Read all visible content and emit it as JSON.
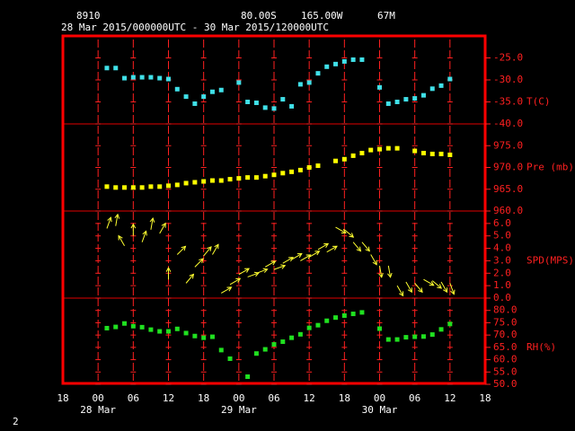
{
  "chart_data": {
    "type": "meteogram",
    "header": {
      "station": "8910",
      "latitude": "80.00S",
      "longitude": "165.00W",
      "elevation": "67M",
      "period": "28 Mar 2015/000000UTC - 30 Mar 2015/120000UTC"
    },
    "page_number": "2",
    "x": [
      1.5,
      3,
      4.5,
      6,
      7.5,
      9,
      10.5,
      12,
      13.5,
      15,
      16.5,
      18,
      19.5,
      21,
      22.5,
      24,
      25.5,
      27,
      28.5,
      30,
      31.5,
      33,
      34.5,
      36,
      37.5,
      39,
      40.5,
      42,
      43.5,
      45,
      46.5,
      48,
      49.5,
      51,
      52.5,
      54,
      55.5,
      57,
      58.5,
      60
    ],
    "xlim": [
      -6,
      66
    ],
    "xticks": [
      {
        "value": -6,
        "label": "18"
      },
      {
        "value": 0,
        "label": "00"
      },
      {
        "value": 6,
        "label": "06"
      },
      {
        "value": 12,
        "label": "12"
      },
      {
        "value": 18,
        "label": "18"
      },
      {
        "value": 24,
        "label": "00"
      },
      {
        "value": 30,
        "label": "06"
      },
      {
        "value": 36,
        "label": "12"
      },
      {
        "value": 42,
        "label": "18"
      },
      {
        "value": 48,
        "label": "00"
      },
      {
        "value": 54,
        "label": "06"
      },
      {
        "value": 60,
        "label": "12"
      },
      {
        "value": 66,
        "label": "18"
      }
    ],
    "date_ticks": [
      {
        "value": 0,
        "label": "28 Mar"
      },
      {
        "value": 24,
        "label": "29 Mar"
      },
      {
        "value": 48,
        "label": "30 Mar"
      }
    ],
    "panels": [
      {
        "type": "scatter",
        "label": "T(C)",
        "color": "#40e0e8",
        "ylim": [
          -40,
          -20
        ],
        "yticks": [
          {
            "value": -25,
            "label": "-25.0"
          },
          {
            "value": -30,
            "label": "-30.0"
          },
          {
            "value": -35,
            "label": "-35.0"
          },
          {
            "value": -40,
            "label": "-40.0"
          }
        ],
        "values": [
          -27.3,
          -27.3,
          -29.6,
          -29.4,
          -29.4,
          -29.4,
          -29.6,
          -29.8,
          -32.1,
          -33.8,
          -35.4,
          -33.8,
          -32.7,
          -32.3,
          null,
          -30.6,
          -35,
          -35.2,
          -36.3,
          -36.5,
          -34.4,
          -36.0,
          -31,
          -30.6,
          -28.5,
          -27,
          -26.4,
          -25.8,
          -25.4,
          -25.4,
          null,
          -31.7,
          -35.4,
          -35.0,
          -34.4,
          -34.2,
          -33.5,
          -32,
          -31.3,
          -29.8
        ]
      },
      {
        "type": "scatter",
        "label": "Pre (mb)",
        "color": "#ffff00",
        "ylim": [
          960,
          980
        ],
        "yticks": [
          {
            "value": 960,
            "label": "960.0"
          },
          {
            "value": 965,
            "label": "965.0"
          },
          {
            "value": 970,
            "label": "970.0"
          },
          {
            "value": 975,
            "label": "975.0"
          }
        ],
        "values": [
          965.6,
          965.4,
          965.4,
          965.4,
          965.4,
          965.6,
          965.6,
          965.8,
          966.0,
          966.4,
          966.6,
          966.8,
          967.0,
          967.0,
          967.3,
          967.5,
          967.7,
          967.7,
          968.0,
          968.3,
          968.7,
          969.0,
          969.4,
          970.0,
          970.4,
          null,
          971.5,
          971.9,
          972.7,
          973.3,
          974.0,
          974.2,
          974.4,
          974.4,
          null,
          973.8,
          973.3,
          973.1,
          973.1,
          972.9
        ]
      },
      {
        "type": "quiver",
        "label": "SPD(MPS)",
        "color": "#ffff30",
        "ylim": [
          0,
          7
        ],
        "yticks": [
          {
            "value": 0,
            "label": "0.0"
          },
          {
            "value": 1,
            "label": "1.0"
          },
          {
            "value": 2,
            "label": "2.0"
          },
          {
            "value": 3,
            "label": "3.0"
          },
          {
            "value": 4,
            "label": "4.0"
          },
          {
            "value": 5,
            "label": "5.0"
          },
          {
            "value": 6,
            "label": "6.0"
          }
        ],
        "values": [
          5.6,
          5.8,
          4.2,
          5,
          4.5,
          5.5,
          5.2,
          1.5,
          3.5,
          1.2,
          2.5,
          3.4,
          3.5,
          0.4,
          1.1,
          1.9,
          1.7,
          2.0,
          2.5,
          2.3,
          2.8,
          3.1,
          3.0,
          3.3,
          3.9,
          3.7,
          5.7,
          5.5,
          4.5,
          4.5,
          3.5,
          2.6,
          2.6,
          1.0,
          1.3,
          1.2,
          1.5,
          1.4,
          1.3,
          1.2
        ],
        "directions": [
          20,
          10,
          330,
          0,
          20,
          10,
          30,
          0,
          45,
          40,
          45,
          40,
          30,
          60,
          60,
          60,
          70,
          70,
          60,
          70,
          60,
          60,
          60,
          60,
          60,
          60,
          120,
          130,
          140,
          140,
          150,
          170,
          170,
          150,
          150,
          140,
          120,
          130,
          150,
          160
        ]
      },
      {
        "type": "scatter",
        "label": "RH(%)",
        "color": "#20e020",
        "ylim": [
          50,
          85
        ],
        "yticks": [
          {
            "value": 50,
            "label": "50.0"
          },
          {
            "value": 55,
            "label": "55.0"
          },
          {
            "value": 60,
            "label": "60.0"
          },
          {
            "value": 65,
            "label": "65.0"
          },
          {
            "value": 70,
            "label": "70.0"
          },
          {
            "value": 75,
            "label": "75.0"
          },
          {
            "value": 80,
            "label": "80.0"
          }
        ],
        "values": [
          72.8,
          73.3,
          74.7,
          73.6,
          73.2,
          72.2,
          71.5,
          71.5,
          72.5,
          70.8,
          69.6,
          68.9,
          69.3,
          63.9,
          60.4,
          null,
          53.1,
          62.5,
          64.2,
          66.2,
          67.3,
          68.9,
          70.3,
          72.9,
          74.0,
          75.8,
          77.1,
          77.9,
          78.6,
          79.2,
          null,
          72.6,
          68.2,
          68.2,
          69.1,
          69.3,
          69.4,
          70.2,
          72.3,
          74.5
        ]
      }
    ]
  }
}
